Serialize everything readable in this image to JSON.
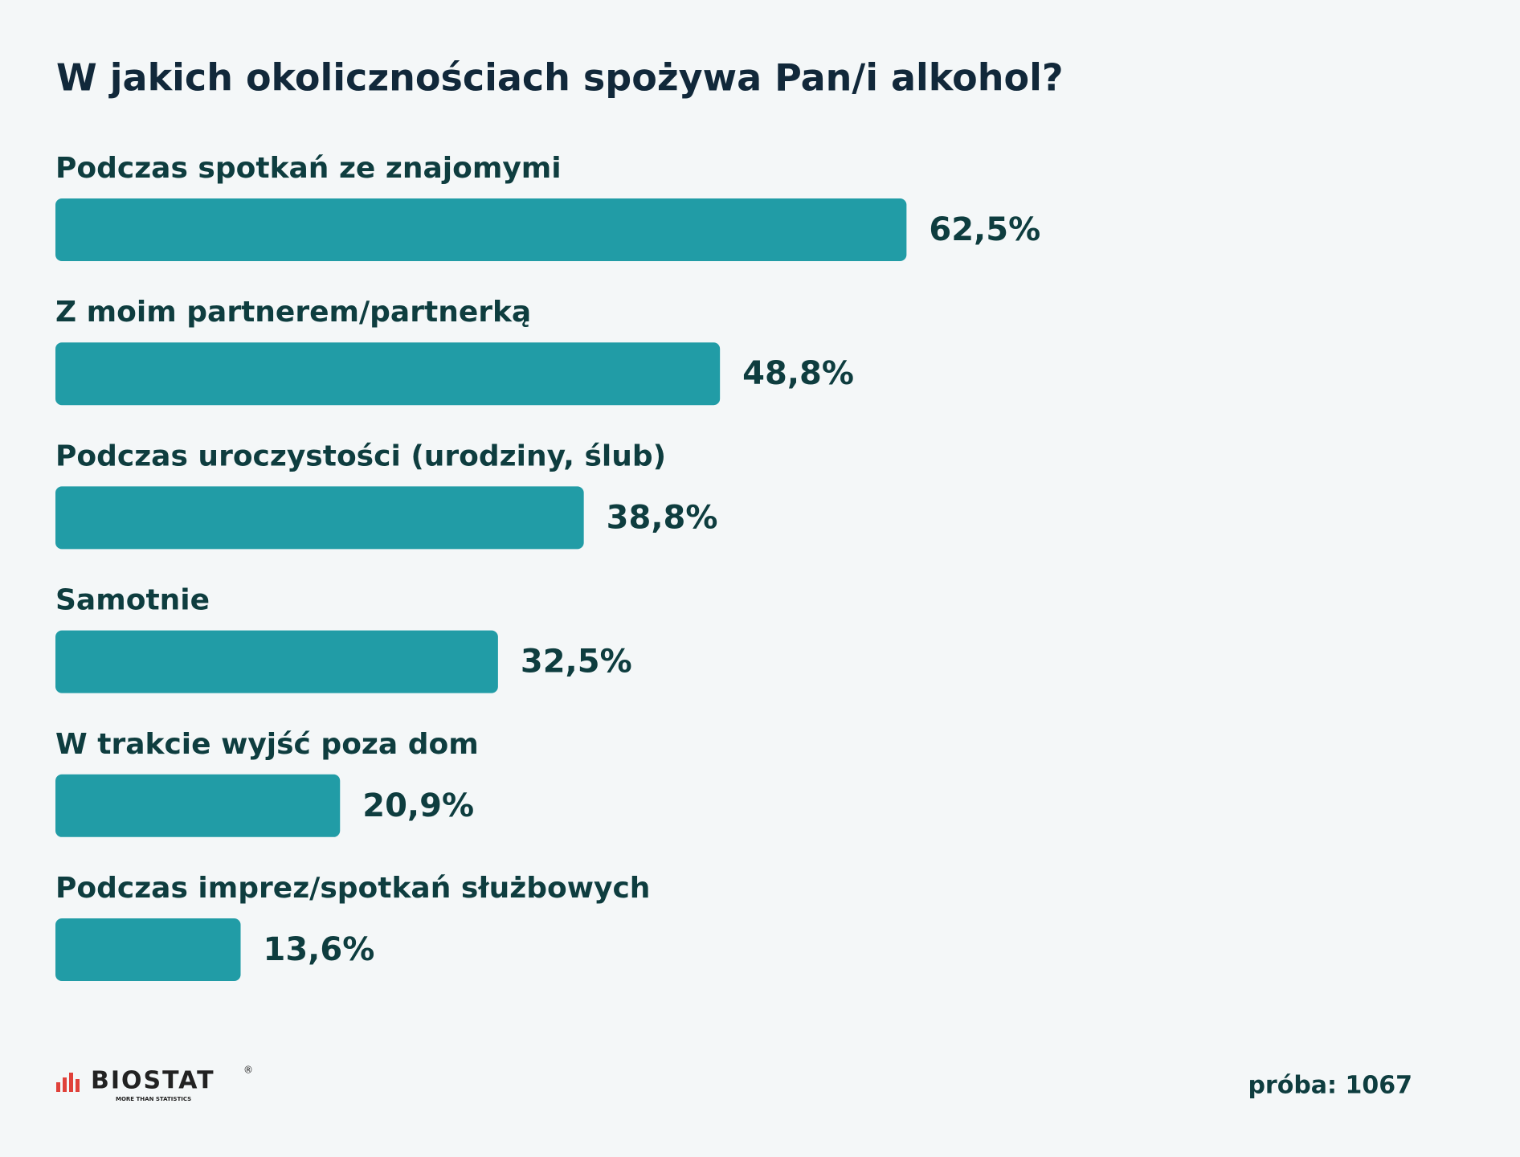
{
  "chart_data": {
    "type": "bar",
    "orientation": "horizontal",
    "title": "W jakich okolicznościach spożywa Pan/i alkohol?",
    "categories": [
      "Podczas spotkań ze znajomymi",
      "Z moim partnerem/partnerką",
      "Podczas uroczystości (urodziny, ślub)",
      "Samotnie",
      "W trakcie wyjść poza dom",
      "Podczas imprez/spotkań służbowych"
    ],
    "values": [
      62.5,
      48.8,
      38.8,
      32.5,
      20.9,
      13.6
    ],
    "value_labels": [
      "62,5%",
      "48,8%",
      "38,8%",
      "32,5%",
      "20,9%",
      "13,6%"
    ],
    "color": "#219ca6",
    "logo": "BIOSTAT",
    "logo_mark": "®",
    "logo_tagline": "MORE THAN STATISTICS",
    "note": "próba: 1067"
  }
}
